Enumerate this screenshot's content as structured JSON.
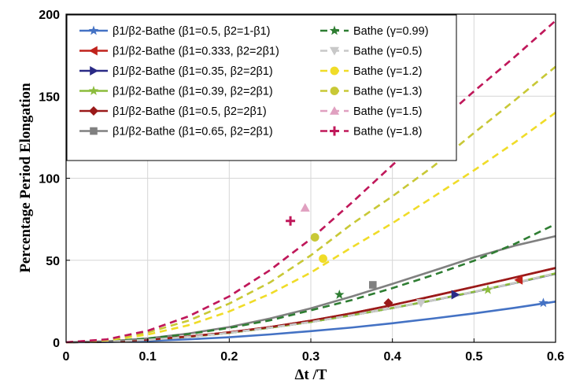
{
  "chart_data": {
    "type": "line",
    "xlabel": "Δt /T",
    "ylabel": "Percentage Period Elongation",
    "xlim": [
      0,
      0.6
    ],
    "ylim": [
      0,
      200
    ],
    "xticks": [
      "0",
      "0.1",
      "0.2",
      "0.3",
      "0.4",
      "0.5",
      "0.6"
    ],
    "yticks": [
      "0",
      "50",
      "100",
      "150",
      "200"
    ],
    "grid": true,
    "legend_position": "top, two columns",
    "x": [
      0,
      0.05,
      0.1,
      0.15,
      0.2,
      0.25,
      0.3,
      0.35,
      0.4,
      0.45,
      0.5,
      0.55,
      0.6
    ],
    "series": [
      {
        "name": "β1/β2-Bathe (β1=0.5,    β2=1-β1)",
        "color": "#4472c4",
        "dash": "solid",
        "marker": "star",
        "marker_at": [
          0.585,
          24
        ],
        "values": [
          0,
          0.2,
          0.8,
          1.8,
          3.1,
          4.8,
          6.8,
          9.0,
          11.6,
          14.5,
          17.6,
          21.0,
          24.8
        ]
      },
      {
        "name": "β1/β2-Bathe (β1=0.333, β2=2β1)",
        "color": "#c0221c",
        "dash": "solid",
        "marker": "triangle-left",
        "marker_at": [
          0.555,
          38
        ],
        "values": [
          0,
          0.4,
          1.6,
          3.5,
          6.1,
          9.3,
          13.2,
          17.7,
          22.7,
          28.2,
          33.8,
          39.5,
          45.3
        ]
      },
      {
        "name": "β1/β2-Bathe (β1=0.35,  β2=2β1)",
        "color": "#2a2a86",
        "dash": "solid",
        "marker": "triangle-right",
        "marker_at": [
          0.477,
          29
        ],
        "values": [
          0,
          0.4,
          1.5,
          3.3,
          5.8,
          8.9,
          12.4,
          16.5,
          20.9,
          25.6,
          30.7,
          36.1,
          41.8
        ]
      },
      {
        "name": "β1/β2-Bathe (β1=0.39,  β2=2β1)",
        "color": "#8cbc3c",
        "dash": "solid",
        "marker": "star",
        "marker_at": [
          0.517,
          32
        ],
        "values": [
          0,
          0.4,
          1.5,
          3.3,
          5.8,
          8.9,
          12.4,
          16.5,
          20.9,
          25.7,
          30.8,
          36.2,
          42.0
        ]
      },
      {
        "name": "β1/β2-Bathe (β1=0.5,    β2=2β1)",
        "color": "#9a1a1a",
        "dash": "solid",
        "marker": "diamond",
        "marker_at": [
          0.395,
          24
        ],
        "values": [
          0,
          0.4,
          1.6,
          3.5,
          6.1,
          9.3,
          13.2,
          17.7,
          22.7,
          28.2,
          33.8,
          39.5,
          45.3
        ]
      },
      {
        "name": "β1/β2-Bathe (β1=0.65,  β2=2β1)",
        "color": "#808080",
        "dash": "solid",
        "marker": "square",
        "marker_at": [
          0.376,
          35
        ],
        "values": [
          0,
          0.6,
          2.4,
          5.3,
          9.3,
          14.5,
          20.7,
          27.9,
          35.6,
          43.6,
          51.7,
          58.9,
          64.7
        ]
      },
      {
        "name": "Bathe (γ=0.99)",
        "color": "#2e7d32",
        "dash": "dashed",
        "marker": "star",
        "marker_at": [
          0.335,
          29
        ],
        "values": [
          0,
          0.6,
          2.3,
          5.0,
          8.8,
          13.4,
          19.5,
          25.7,
          33.0,
          41.0,
          49.7,
          60.0,
          72.0
        ]
      },
      {
        "name": "Bathe (γ=0.5)",
        "color": "#c8c8c8",
        "dash": "dashed",
        "marker": "triangle-down",
        "marker_at": [
          0.435,
          24
        ],
        "values": [
          0,
          0.4,
          1.5,
          3.3,
          5.8,
          8.9,
          12.4,
          16.5,
          20.9,
          25.7,
          30.8,
          36.2,
          42.0
        ]
      },
      {
        "name": "Bathe (γ=1.2)",
        "color": "#f0dc28",
        "dash": "dashed",
        "marker": "circle",
        "marker_at": [
          0.315,
          51
        ],
        "values": [
          0,
          1.2,
          4.7,
          10.4,
          18.8,
          29.5,
          42.5,
          57.8,
          72.6,
          88.6,
          104.8,
          121.8,
          140.0
        ]
      },
      {
        "name": "Bathe (γ=1.3)",
        "color": "#c8c836",
        "dash": "dashed",
        "marker": "circle",
        "marker_at": [
          0.305,
          64
        ],
        "values": [
          0,
          1.5,
          6.0,
          13.2,
          23.6,
          36.5,
          53.0,
          72.0,
          89.0,
          107.2,
          127.6,
          147.5,
          168.0
        ]
      },
      {
        "name": "Bathe (γ=1.5)",
        "color": "#e0a0c0",
        "dash": "dashed",
        "marker": "triangle-up",
        "marker_at": [
          0.293,
          82
        ],
        "values": [
          0,
          1.8,
          7.0,
          15.8,
          28.0,
          44.0,
          63.0,
          85.0,
          108.0,
          131.0,
          153.0,
          174.0,
          196.0
        ]
      },
      {
        "name": "Bathe (γ=1.8)",
        "color": "#c0185a",
        "dash": "dashed",
        "marker": "plus",
        "marker_at": [
          0.275,
          74
        ],
        "values": [
          0,
          1.8,
          7.0,
          15.8,
          28.0,
          44.0,
          63.0,
          85.0,
          108.0,
          131.0,
          153.0,
          174.0,
          196.0
        ]
      }
    ]
  }
}
